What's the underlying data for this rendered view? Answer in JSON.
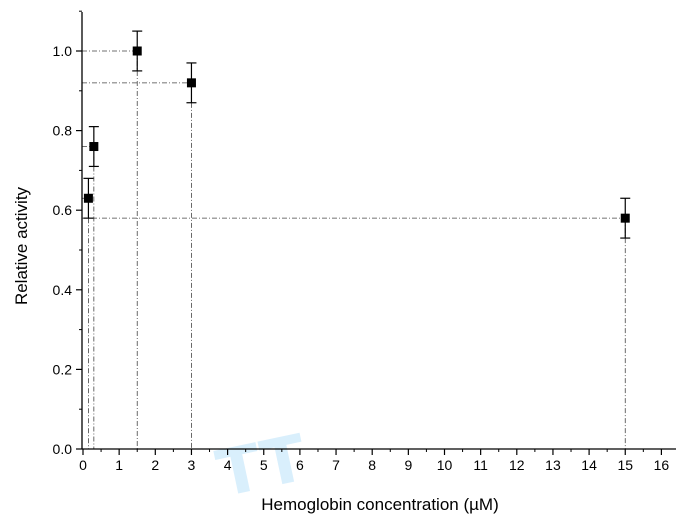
{
  "chart_data": {
    "type": "scatter",
    "xlabel": "Hemoglobin concentration (µM)",
    "ylabel": "Relative activity",
    "xlim": [
      0,
      16.5
    ],
    "ylim": [
      0,
      1.1
    ],
    "x_ticks": [
      "0",
      "1",
      "2",
      "3",
      "4",
      "5",
      "6",
      "7",
      "8",
      "9",
      "10",
      "11",
      "12",
      "13",
      "14",
      "15",
      "16"
    ],
    "y_ticks": [
      "0.0",
      "0.2",
      "0.4",
      "0.6",
      "0.8",
      "1.0"
    ],
    "points": [
      {
        "x": 0.15,
        "y": 0.63,
        "err": 0.05
      },
      {
        "x": 0.3,
        "y": 0.76,
        "err": 0.05
      },
      {
        "x": 1.5,
        "y": 1.0,
        "err": 0.05
      },
      {
        "x": 3.0,
        "y": 0.92,
        "err": 0.05
      },
      {
        "x": 15.0,
        "y": 0.58,
        "err": 0.05
      }
    ],
    "drop_lines": true,
    "grid": false,
    "marker": "square",
    "color": "#000000"
  },
  "watermark": {
    "color": "#33a8f0"
  }
}
